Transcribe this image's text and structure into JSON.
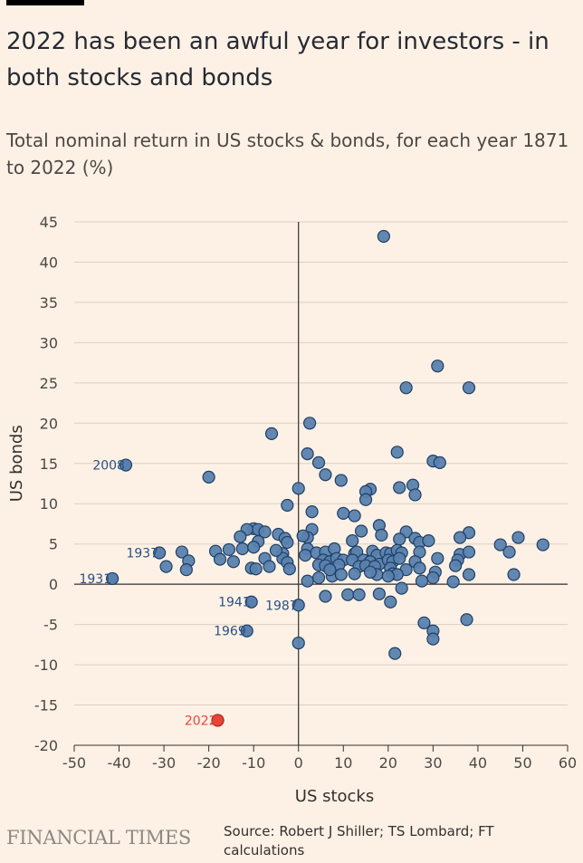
{
  "header": {
    "title": "2022 has been an awful year for investors - in both stocks and bonds",
    "subtitle": "Total nominal return in US stocks & bonds, for each year 1871 to 2022 (%)"
  },
  "footer": {
    "publisher": "FINANCIAL TIMES",
    "source": "Source: Robert J Shiller; TS Lombard; FT calculations"
  },
  "colors": {
    "background": "#fdf1e5",
    "point_fill": "#5a81ad",
    "point_stroke": "#1e3f66",
    "highlight": "#e8443a",
    "label": "#2a5182",
    "grid": "#d9cfc4"
  },
  "chart_data": {
    "type": "scatter",
    "xlabel": "US stocks",
    "ylabel": "US bonds",
    "xlim": [
      -50,
      60
    ],
    "ylim": [
      -20,
      45
    ],
    "xticks": [
      -50,
      -40,
      -30,
      -20,
      -10,
      0,
      10,
      20,
      30,
      40,
      50,
      60
    ],
    "yticks": [
      -20,
      -15,
      -10,
      -5,
      0,
      5,
      10,
      15,
      20,
      25,
      30,
      35,
      40,
      45
    ],
    "grid": "horizontal",
    "annotations": [
      {
        "label": "2008",
        "x": -38.5,
        "y": 14.8,
        "highlight": false
      },
      {
        "label": "1937",
        "x": -31.0,
        "y": 3.9,
        "highlight": false
      },
      {
        "label": "1931",
        "x": -41.5,
        "y": 0.7,
        "highlight": false
      },
      {
        "label": "1941",
        "x": -10.5,
        "y": -2.2,
        "highlight": false
      },
      {
        "label": "1987",
        "x": 0.0,
        "y": -2.6,
        "highlight": false
      },
      {
        "label": "1969",
        "x": -11.5,
        "y": -5.8,
        "highlight": false
      },
      {
        "label": "2022",
        "x": -18.0,
        "y": -16.9,
        "highlight": true
      }
    ],
    "points": [
      [
        19.0,
        43.2
      ],
      [
        31.0,
        27.1
      ],
      [
        24.0,
        24.4
      ],
      [
        38.0,
        24.4
      ],
      [
        2.5,
        20.0
      ],
      [
        -6.0,
        18.7
      ],
      [
        2.0,
        16.2
      ],
      [
        22.0,
        16.4
      ],
      [
        30.0,
        15.3
      ],
      [
        31.5,
        15.1
      ],
      [
        4.5,
        15.1
      ],
      [
        -20.0,
        13.3
      ],
      [
        6.0,
        13.6
      ],
      [
        9.5,
        12.9
      ],
      [
        25.5,
        12.3
      ],
      [
        0.0,
        11.9
      ],
      [
        16.0,
        11.8
      ],
      [
        15.0,
        11.5
      ],
      [
        22.5,
        12.0
      ],
      [
        26.0,
        11.1
      ],
      [
        15.0,
        10.5
      ],
      [
        -2.5,
        9.8
      ],
      [
        3.0,
        9.0
      ],
      [
        10.0,
        8.8
      ],
      [
        12.5,
        8.5
      ],
      [
        18.0,
        7.3
      ],
      [
        -10.0,
        6.9
      ],
      [
        -9.0,
        6.8
      ],
      [
        -11.5,
        6.8
      ],
      [
        -7.5,
        6.5
      ],
      [
        3.0,
        6.8
      ],
      [
        14.0,
        6.6
      ],
      [
        24.0,
        6.5
      ],
      [
        38.0,
        6.4
      ],
      [
        -13.0,
        5.9
      ],
      [
        -4.5,
        6.2
      ],
      [
        -3.0,
        5.7
      ],
      [
        2.0,
        5.8
      ],
      [
        1.0,
        6.0
      ],
      [
        18.5,
        6.1
      ],
      [
        26.0,
        5.7
      ],
      [
        36.0,
        5.8
      ],
      [
        49.0,
        5.8
      ],
      [
        -9.0,
        5.3
      ],
      [
        -2.5,
        5.2
      ],
      [
        12.0,
        5.4
      ],
      [
        22.5,
        5.6
      ],
      [
        27.0,
        5.2
      ],
      [
        29.0,
        5.4
      ],
      [
        45.0,
        4.9
      ],
      [
        54.5,
        4.9
      ],
      [
        -18.5,
        4.1
      ],
      [
        -15.5,
        4.3
      ],
      [
        -12.5,
        4.4
      ],
      [
        -10.0,
        4.6
      ],
      [
        -3.5,
        3.8
      ],
      [
        2.0,
        4.4
      ],
      [
        4.0,
        3.9
      ],
      [
        6.0,
        4.0
      ],
      [
        8.0,
        4.4
      ],
      [
        12.5,
        3.8
      ],
      [
        13.0,
        4.0
      ],
      [
        16.5,
        4.1
      ],
      [
        17.5,
        3.6
      ],
      [
        19.5,
        3.9
      ],
      [
        20.5,
        3.8
      ],
      [
        22.0,
        4.2
      ],
      [
        23.0,
        3.9
      ],
      [
        27.0,
        4.0
      ],
      [
        36.0,
        3.7
      ],
      [
        38.0,
        4.0
      ],
      [
        47.0,
        4.0
      ],
      [
        -26.0,
        4.0
      ],
      [
        -24.5,
        2.9
      ],
      [
        -17.5,
        3.1
      ],
      [
        -14.5,
        2.8
      ],
      [
        -7.5,
        3.2
      ],
      [
        -3.5,
        3.2
      ],
      [
        -2.5,
        2.7
      ],
      [
        1.5,
        3.6
      ],
      [
        5.5,
        3.0
      ],
      [
        7.0,
        2.8
      ],
      [
        8.5,
        3.2
      ],
      [
        10.0,
        3.0
      ],
      [
        12.0,
        3.0
      ],
      [
        14.5,
        3.0
      ],
      [
        16.0,
        2.8
      ],
      [
        18.0,
        2.5
      ],
      [
        20.0,
        3.0
      ],
      [
        21.0,
        2.8
      ],
      [
        22.5,
        3.2
      ],
      [
        26.0,
        2.8
      ],
      [
        31.0,
        3.2
      ],
      [
        35.5,
        3.0
      ],
      [
        -29.5,
        2.2
      ],
      [
        -25.0,
        1.8
      ],
      [
        -10.5,
        2.0
      ],
      [
        -9.5,
        1.9
      ],
      [
        -6.5,
        2.2
      ],
      [
        -2.0,
        1.9
      ],
      [
        4.5,
        2.4
      ],
      [
        6.0,
        2.3
      ],
      [
        9.0,
        2.4
      ],
      [
        13.5,
        2.2
      ],
      [
        15.0,
        2.3
      ],
      [
        17.0,
        2.2
      ],
      [
        20.5,
        2.0
      ],
      [
        24.0,
        1.8
      ],
      [
        27.0,
        2.0
      ],
      [
        30.5,
        1.5
      ],
      [
        35.0,
        2.3
      ],
      [
        2.0,
        0.4
      ],
      [
        4.5,
        0.8
      ],
      [
        7.5,
        1.0
      ],
      [
        9.5,
        1.2
      ],
      [
        12.5,
        1.3
      ],
      [
        17.5,
        1.2
      ],
      [
        21.0,
        1.3
      ],
      [
        22.0,
        1.2
      ],
      [
        27.5,
        0.4
      ],
      [
        30.0,
        0.8
      ],
      [
        34.5,
        0.3
      ],
      [
        38.0,
        1.2
      ],
      [
        48.0,
        1.2
      ],
      [
        6.0,
        -1.5
      ],
      [
        11.0,
        -1.3
      ],
      [
        13.5,
        -1.3
      ],
      [
        18.0,
        -1.2
      ],
      [
        20.5,
        -2.2
      ],
      [
        23.0,
        -0.5
      ],
      [
        28.0,
        -4.8
      ],
      [
        30.0,
        -5.8
      ],
      [
        30.0,
        -6.8
      ],
      [
        37.5,
        -4.4
      ],
      [
        0.0,
        -7.3
      ],
      [
        21.5,
        -8.6
      ],
      [
        20.0,
        1.0
      ],
      [
        16.0,
        1.5
      ],
      [
        7.0,
        1.8
      ],
      [
        -5.0,
        4.2
      ]
    ]
  }
}
